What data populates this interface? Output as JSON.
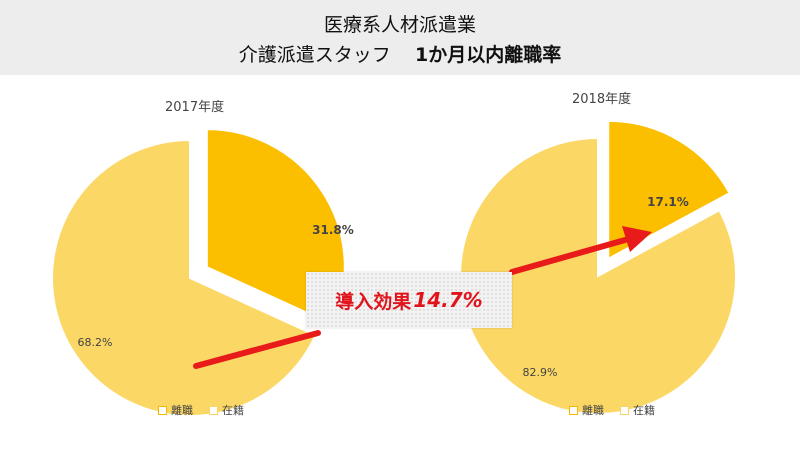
{
  "header": {
    "line1": "医療系人材派遣業",
    "line2_prefix": "介護派遣スタッフ",
    "line2_bold": "1か月以内離職率"
  },
  "colors": {
    "resigned": "#fbbf00",
    "enrolled": "#fbd765",
    "arrow": "#e81a1a",
    "callout_text": "#e1141b"
  },
  "callout": {
    "label": "導入効果",
    "value": "14.7%"
  },
  "chart_data": [
    {
      "type": "pie",
      "title": "2017年度",
      "categories": [
        "離職",
        "在籍"
      ],
      "values": [
        31.8,
        68.2
      ],
      "data_labels": [
        "31.8%",
        "68.2%"
      ],
      "exploded": "離職",
      "legend": [
        "離職",
        "在籍"
      ]
    },
    {
      "type": "pie",
      "title": "2018年度",
      "categories": [
        "離職",
        "在籍"
      ],
      "values": [
        17.1,
        82.9
      ],
      "data_labels": [
        "17.1%",
        "82.9%"
      ],
      "exploded": "離職",
      "legend": [
        "離職",
        "在籍"
      ]
    }
  ]
}
